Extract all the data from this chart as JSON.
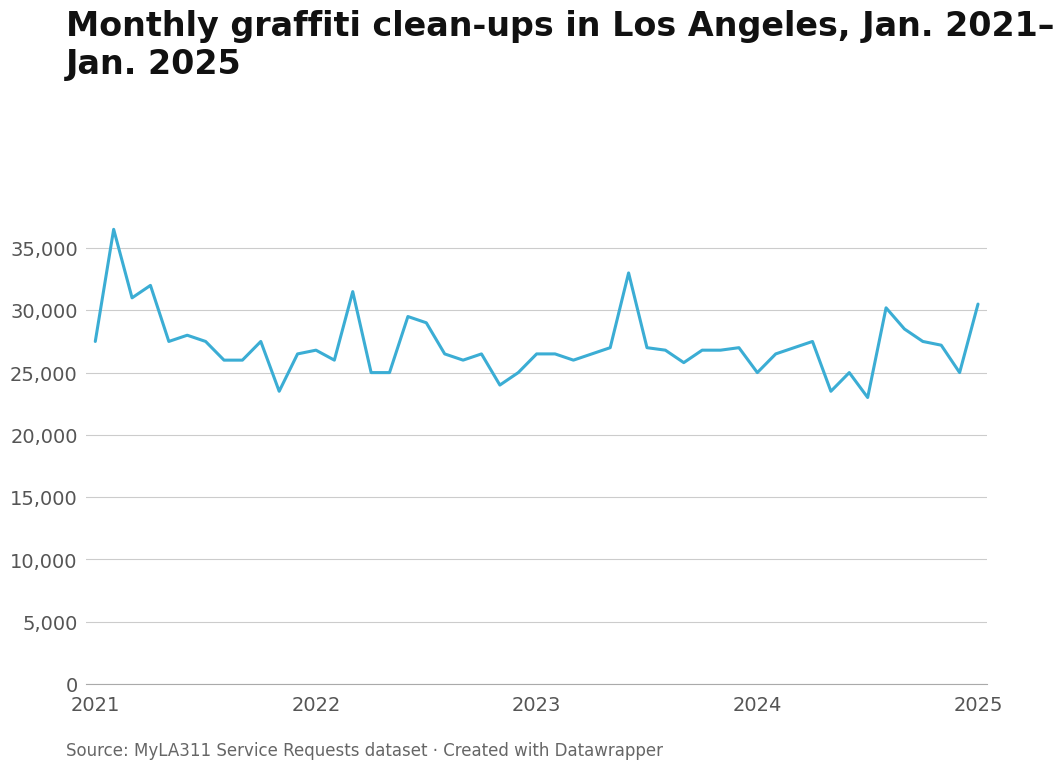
{
  "title": "Monthly graffiti clean-ups in Los Angeles, Jan. 2021–\nJan. 2025",
  "source": "Source: MyLA311 Service Requests dataset · Created with Datawrapper",
  "line_color": "#3BADD4",
  "background_color": "#ffffff",
  "line_width": 2.2,
  "ylim": [
    0,
    38000
  ],
  "yticks": [
    0,
    5000,
    10000,
    15000,
    20000,
    25000,
    30000,
    35000
  ],
  "values": [
    27500,
    36500,
    31000,
    32000,
    27500,
    28000,
    27500,
    26000,
    26000,
    27500,
    23500,
    26500,
    26800,
    26000,
    31500,
    25000,
    25000,
    29500,
    29000,
    26500,
    26000,
    26500,
    24000,
    25000,
    26500,
    26500,
    26000,
    26500,
    27000,
    33000,
    27000,
    26800,
    25800,
    26800,
    26800,
    27000,
    25000,
    26500,
    27000,
    27500,
    23500,
    25000,
    23000,
    30200,
    28500,
    27500,
    27200,
    25000,
    30500
  ],
  "xtick_years": [
    "2021",
    "2022",
    "2023",
    "2024",
    "2025"
  ],
  "xtick_positions": [
    0,
    12,
    24,
    36,
    48
  ],
  "title_fontsize": 24,
  "tick_fontsize": 14,
  "source_fontsize": 12,
  "grid_color": "#cccccc",
  "spine_color": "#aaaaaa",
  "tick_color": "#555555"
}
